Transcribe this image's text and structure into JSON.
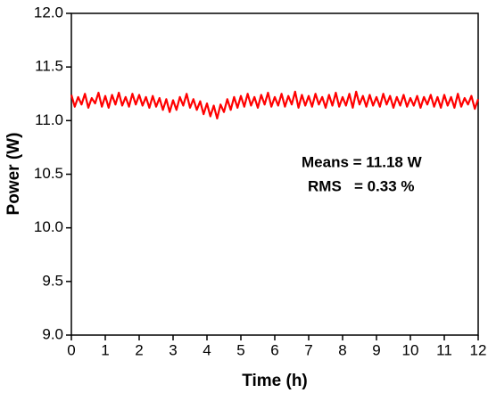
{
  "chart_data": {
    "type": "line",
    "xlabel": "Time (h)",
    "ylabel": "Power (W)",
    "annotations": [
      "Means = 11.18 W",
      "RMS   = 0.33 %"
    ],
    "x": [
      0,
      0.1,
      0.2,
      0.3,
      0.4,
      0.5,
      0.6,
      0.7,
      0.8,
      0.9,
      1,
      1.1,
      1.2,
      1.3,
      1.4,
      1.5,
      1.6,
      1.7,
      1.8,
      1.9,
      2,
      2.1,
      2.2,
      2.3,
      2.4,
      2.5,
      2.6,
      2.7,
      2.8,
      2.9,
      3,
      3.1,
      3.2,
      3.3,
      3.4,
      3.5,
      3.6,
      3.7,
      3.8,
      3.9,
      4,
      4.1,
      4.2,
      4.3,
      4.4,
      4.5,
      4.6,
      4.7,
      4.8,
      4.9,
      5,
      5.1,
      5.2,
      5.3,
      5.4,
      5.5,
      5.6,
      5.7,
      5.8,
      5.9,
      6,
      6.1,
      6.2,
      6.3,
      6.4,
      6.5,
      6.6,
      6.7,
      6.8,
      6.9,
      7,
      7.1,
      7.2,
      7.3,
      7.4,
      7.5,
      7.6,
      7.7,
      7.8,
      7.9,
      8,
      8.1,
      8.2,
      8.3,
      8.4,
      8.5,
      8.6,
      8.7,
      8.8,
      8.9,
      9,
      9.1,
      9.2,
      9.3,
      9.4,
      9.5,
      9.6,
      9.7,
      9.8,
      9.9,
      10,
      10.1,
      10.2,
      10.3,
      10.4,
      10.5,
      10.6,
      10.7,
      10.8,
      10.9,
      11,
      11.1,
      11.2,
      11.3,
      11.4,
      11.5,
      11.6,
      11.7,
      11.8,
      11.9,
      12
    ],
    "series": [
      {
        "color": "#ff0000",
        "values": [
          11.24,
          11.13,
          11.22,
          11.15,
          11.25,
          11.12,
          11.21,
          11.16,
          11.26,
          11.13,
          11.23,
          11.12,
          11.24,
          11.15,
          11.26,
          11.14,
          11.22,
          11.13,
          11.25,
          11.15,
          11.24,
          11.14,
          11.22,
          11.12,
          11.23,
          11.13,
          11.21,
          11.1,
          11.2,
          11.08,
          11.19,
          11.1,
          11.22,
          11.14,
          11.25,
          11.12,
          11.2,
          11.1,
          11.18,
          11.06,
          11.16,
          11.04,
          11.14,
          11.02,
          11.15,
          11.08,
          11.2,
          11.1,
          11.22,
          11.12,
          11.23,
          11.13,
          11.25,
          11.14,
          11.22,
          11.12,
          11.24,
          11.15,
          11.26,
          11.13,
          11.22,
          11.14,
          11.25,
          11.13,
          11.23,
          11.15,
          11.27,
          11.12,
          11.24,
          11.14,
          11.23,
          11.13,
          11.25,
          11.15,
          11.22,
          11.12,
          11.24,
          11.14,
          11.26,
          11.13,
          11.22,
          11.14,
          11.25,
          11.12,
          11.27,
          11.15,
          11.23,
          11.13,
          11.24,
          11.14,
          11.22,
          11.13,
          11.25,
          11.15,
          11.23,
          11.12,
          11.22,
          11.14,
          11.24,
          11.13,
          11.21,
          11.14,
          11.23,
          11.12,
          11.22,
          11.15,
          11.24,
          11.13,
          11.22,
          11.12,
          11.24,
          11.14,
          11.22,
          11.12,
          11.25,
          11.13,
          11.21,
          11.15,
          11.23,
          11.11,
          11.2
        ]
      }
    ],
    "xlim": [
      0,
      12
    ],
    "xticks": [
      0,
      1,
      2,
      3,
      4,
      5,
      6,
      7,
      8,
      9,
      10,
      11,
      12
    ],
    "ylim": [
      9,
      12
    ],
    "yticks": [
      {
        "value": 9,
        "label": "9.0"
      },
      {
        "value": 9.5,
        "label": "9.5"
      },
      {
        "value": 10,
        "label": "10.0"
      },
      {
        "value": 10.5,
        "label": "10.5"
      },
      {
        "value": 11,
        "label": "11.0"
      },
      {
        "value": 11.5,
        "label": "11.5"
      },
      {
        "value": 12,
        "label": "12.0"
      }
    ]
  }
}
